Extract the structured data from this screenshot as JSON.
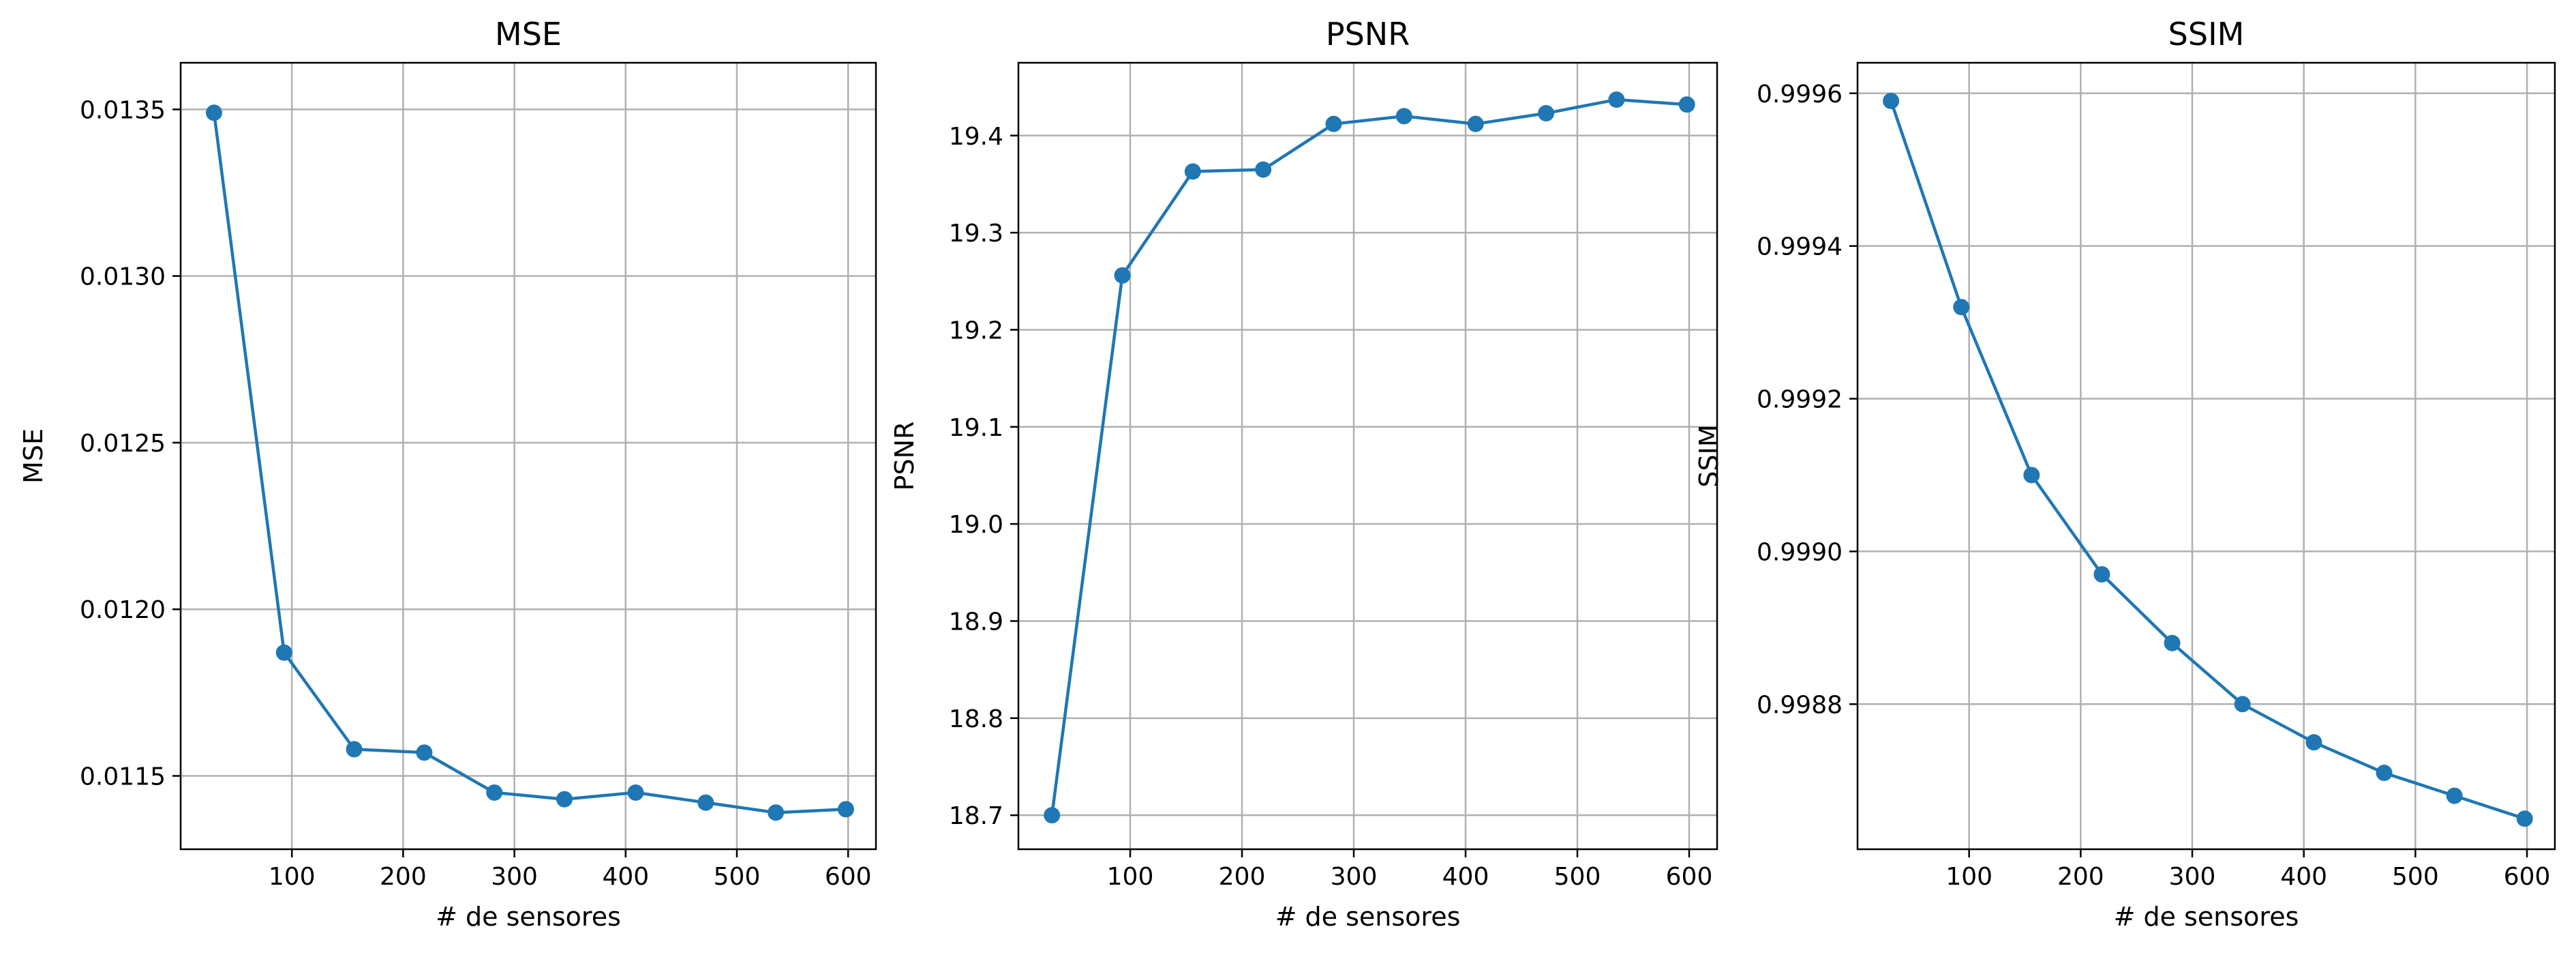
{
  "chart_data": [
    {
      "type": "line",
      "title": "MSE",
      "xlabel": "# de sensores",
      "ylabel": "MSE",
      "xlim": [
        0,
        625
      ],
      "ylim": [
        0.01128,
        0.01364
      ],
      "xticks": [
        100,
        200,
        300,
        400,
        500,
        600
      ],
      "yticks": [
        0.0115,
        0.012,
        0.0125,
        0.013,
        0.0135
      ],
      "ytick_labels": [
        "0.0115",
        "0.0120",
        "0.0125",
        "0.0130",
        "0.0135"
      ],
      "grid": true,
      "color": "#1f77b4",
      "x": [
        30,
        93,
        156,
        219,
        282,
        345,
        409,
        472,
        535,
        598
      ],
      "y": [
        0.01349,
        0.01187,
        0.01158,
        0.01157,
        0.01145,
        0.01143,
        0.01145,
        0.01142,
        0.01139,
        0.0114
      ]
    },
    {
      "type": "line",
      "title": "PSNR",
      "xlabel": "# de sensores",
      "ylabel": "PSNR",
      "xlim": [
        0,
        625
      ],
      "ylim": [
        18.665,
        19.475
      ],
      "xticks": [
        100,
        200,
        300,
        400,
        500,
        600
      ],
      "yticks": [
        18.7,
        18.8,
        18.9,
        19.0,
        19.1,
        19.2,
        19.3,
        19.4
      ],
      "ytick_labels": [
        "18.7",
        "18.8",
        "18.9",
        "19.0",
        "19.1",
        "19.2",
        "19.3",
        "19.4"
      ],
      "grid": true,
      "color": "#1f77b4",
      "x": [
        30,
        93,
        156,
        219,
        282,
        345,
        409,
        472,
        535,
        598
      ],
      "y": [
        18.7,
        19.256,
        19.363,
        19.365,
        19.412,
        19.42,
        19.412,
        19.423,
        19.437,
        19.432
      ]
    },
    {
      "type": "line",
      "title": "SSIM",
      "xlabel": "# de sensores",
      "ylabel": "SSIM",
      "xlim": [
        0,
        625
      ],
      "ylim": [
        0.99861,
        0.99964
      ],
      "xticks": [
        100,
        200,
        300,
        400,
        500,
        600
      ],
      "yticks": [
        0.9988,
        0.999,
        0.9992,
        0.9994,
        0.9996
      ],
      "ytick_labels": [
        "0.9988",
        "0.9990",
        "0.9992",
        "0.9994",
        "0.9996"
      ],
      "grid": true,
      "color": "#1f77b4",
      "x": [
        30,
        93,
        156,
        219,
        282,
        345,
        409,
        472,
        535,
        598
      ],
      "y": [
        0.99959,
        0.99932,
        0.9991,
        0.99897,
        0.99888,
        0.9988,
        0.99875,
        0.99871,
        0.99868,
        0.99865
      ]
    }
  ]
}
